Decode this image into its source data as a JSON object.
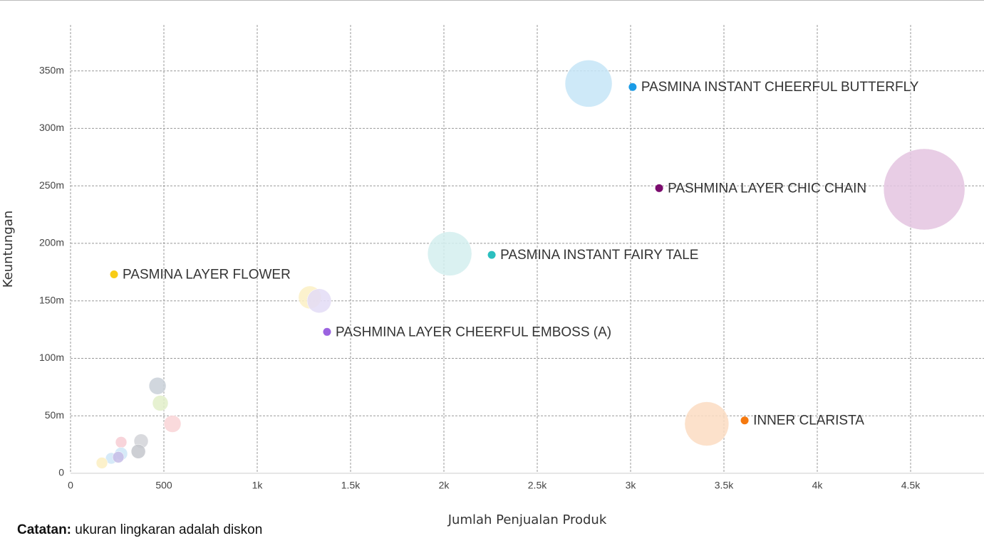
{
  "chart_data": {
    "type": "bubble",
    "x_label": "Jumlah Penjualan Produk",
    "y_label": "Keuntungan",
    "xlim": [
      0,
      4900
    ],
    "ylim": [
      0,
      390000000
    ],
    "xticks": [
      0,
      500,
      {
        "value": 1000,
        "label": "1k"
      },
      {
        "value": 1500,
        "label": "1.5k"
      },
      {
        "value": 2000,
        "label": "2k"
      },
      {
        "value": 2500,
        "label": "2.5k"
      },
      {
        "value": 3000,
        "label": "3k"
      },
      {
        "value": 3500,
        "label": "3.5k"
      },
      {
        "value": 4000,
        "label": "4k"
      },
      {
        "value": 4500,
        "label": "4.5k"
      }
    ],
    "yticks": [
      0,
      {
        "value": 50000000,
        "label": "50m"
      },
      {
        "value": 100000000,
        "label": "100m"
      },
      {
        "value": 150000000,
        "label": "150m"
      },
      {
        "value": 200000000,
        "label": "200m"
      },
      {
        "value": 250000000,
        "label": "250m"
      },
      {
        "value": 300000000,
        "label": "300m"
      },
      {
        "value": 350000000,
        "label": "350m"
      }
    ],
    "grid": true,
    "series": [
      {
        "x": [
          2775,
          4573,
          2031,
          1282,
          1332,
          3408,
          466,
          481,
          546,
          378,
          271,
          363,
          271,
          218,
          256,
          168
        ],
        "y": [
          339000000,
          247000000,
          191000000,
          153000000,
          150000000,
          43000000,
          76000000,
          61000000,
          43000000,
          28000000,
          27000000,
          19000000,
          17000000,
          13000000,
          14000000,
          9000000
        ],
        "sizes": [
          1089,
          3249,
          961,
          256,
          289,
          961,
          144,
          121,
          144,
          100,
          64,
          100,
          81,
          64,
          64,
          64
        ],
        "colors": [
          "#c6e5f7",
          "#e4c4e1",
          "#d3efef",
          "#fbf0c4",
          "#e3dcf6",
          "#fcdcc2",
          "#c9d0d8",
          "#e2eec9",
          "#f9d3d6",
          "#d2d4d8",
          "#f7cdd3",
          "#c4c7cc",
          "#cfe6f7",
          "#cfe6f7",
          "#c7bde6",
          "#fbefc2"
        ]
      }
    ],
    "annotations": [
      {
        "text": "PASMINA INSTANT CHEERFUL BUTTERFLY",
        "x": 3011,
        "y": 336000000,
        "color": "#1a9be6"
      },
      {
        "text": "PASHMINA LAYER CHIC CHAIN",
        "x": 3153,
        "y": 248000000,
        "color": "#7b0c6e"
      },
      {
        "text": "PASMINA INSTANT FAIRY TALE",
        "x": 2256,
        "y": 190000000,
        "color": "#2bbfbf"
      },
      {
        "text": "PASMINA LAYER FLOWER",
        "x": 233,
        "y": 173000000,
        "color": "#f8cc16"
      },
      {
        "text": "PASHMINA LAYER CHEERFUL EMBOSS (A)",
        "x": 1374,
        "y": 123000000,
        "color": "#9b63e0"
      },
      {
        "text": "INNER CLARISTA",
        "x": 3611,
        "y": 46000000,
        "color": "#f5790f"
      }
    ]
  },
  "note": {
    "label": "Catatan:",
    "text": "ukuran lingkaran adalah diskon"
  }
}
